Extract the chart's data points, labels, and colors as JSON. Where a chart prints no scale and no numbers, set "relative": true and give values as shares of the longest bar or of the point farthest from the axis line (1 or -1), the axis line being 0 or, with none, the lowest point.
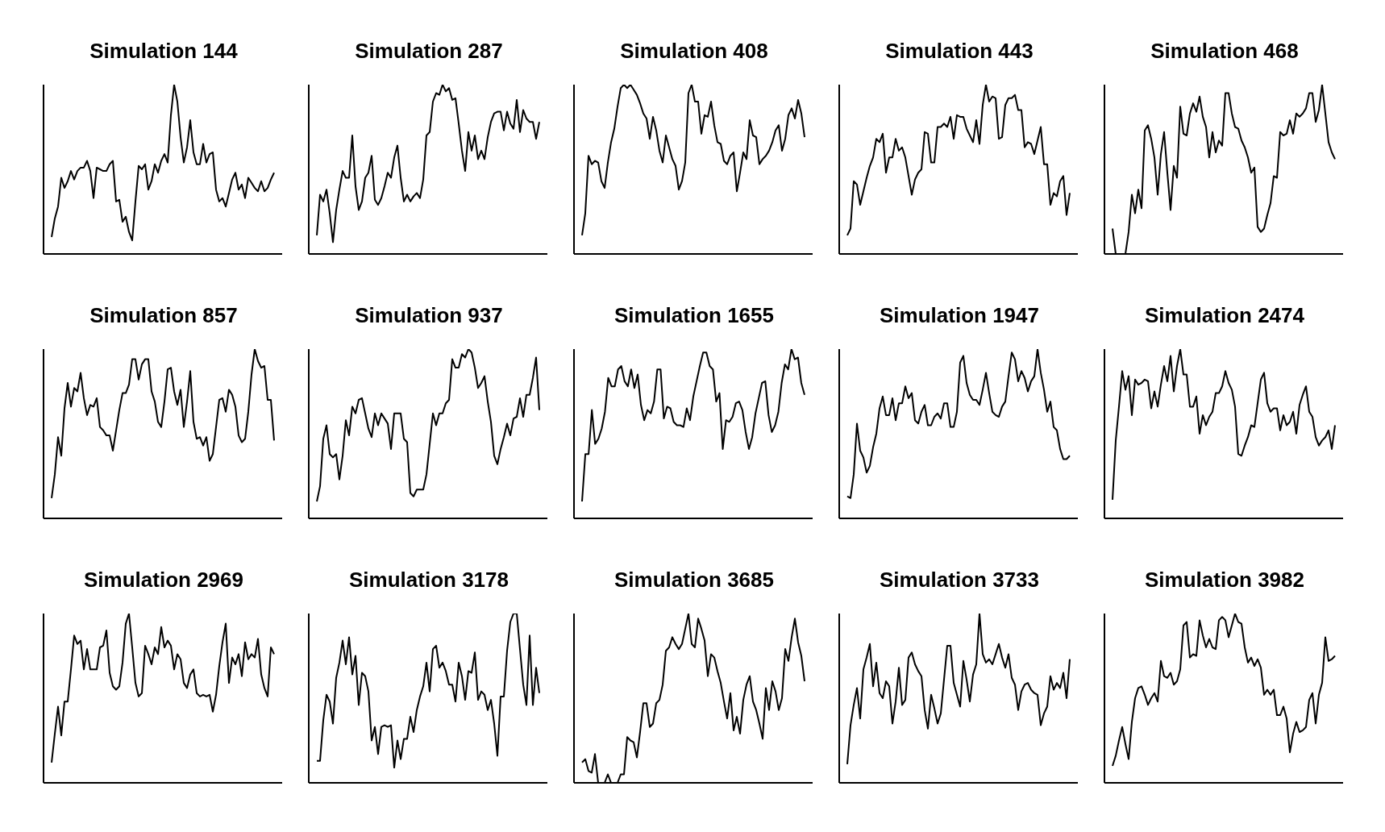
{
  "chart_data": [
    {
      "type": "line",
      "title": "Simulation 144",
      "relative": true,
      "tick_labels": false,
      "color": "#000000",
      "categories": [
        null,
        null,
        null,
        null,
        null,
        null,
        null,
        null,
        null,
        null,
        null,
        null,
        null,
        null,
        null,
        null,
        null,
        null,
        null,
        null,
        null,
        null,
        null,
        null,
        null,
        null,
        null,
        null,
        null,
        null,
        null,
        null,
        null,
        null,
        null,
        null,
        null,
        null,
        null,
        null,
        null,
        null,
        null,
        null,
        null,
        null,
        null,
        null,
        null,
        null,
        null,
        null,
        null,
        null,
        null,
        null,
        null,
        null,
        null,
        null,
        null,
        null,
        null,
        null,
        null,
        null,
        null,
        null,
        null,
        null
      ],
      "values": [
        0.1,
        0.21,
        0.28,
        0.45,
        0.39,
        0.43,
        0.49,
        0.44,
        0.49,
        0.51,
        0.51,
        0.55,
        0.49,
        0.33,
        0.51,
        0.5,
        0.49,
        0.49,
        0.53,
        0.55,
        0.31,
        0.32,
        0.19,
        0.22,
        0.13,
        0.08,
        0.31,
        0.52,
        0.5,
        0.53,
        0.38,
        0.43,
        0.53,
        0.48,
        0.55,
        0.59,
        0.54,
        0.82,
        1.0,
        0.9,
        0.69,
        0.54,
        0.63,
        0.79,
        0.6,
        0.53,
        0.53,
        0.65,
        0.54,
        0.59,
        0.6,
        0.38,
        0.31,
        0.33,
        0.28,
        0.36,
        0.44,
        0.48,
        0.38,
        0.41,
        0.33,
        0.45,
        0.42,
        0.39,
        0.37,
        0.43,
        0.37,
        0.39,
        0.44,
        0.48
      ]
    },
    {
      "type": "line",
      "title": "Simulation 287",
      "relative": true,
      "tick_labels": false,
      "color": "#000000",
      "categories": [
        null,
        null,
        null,
        null,
        null,
        null,
        null,
        null,
        null,
        null,
        null,
        null,
        null,
        null,
        null,
        null,
        null,
        null,
        null,
        null,
        null,
        null,
        null,
        null,
        null,
        null,
        null,
        null,
        null,
        null,
        null,
        null,
        null,
        null,
        null,
        null,
        null,
        null,
        null,
        null,
        null,
        null,
        null,
        null,
        null,
        null,
        null,
        null,
        null,
        null,
        null,
        null,
        null,
        null,
        null,
        null,
        null,
        null,
        null,
        null,
        null,
        null,
        null,
        null,
        null,
        null,
        null,
        null,
        null,
        null
      ],
      "values": [
        0.11,
        0.35,
        0.31,
        0.38,
        0.24,
        0.07,
        0.26,
        0.38,
        0.49,
        0.45,
        0.45,
        0.7,
        0.4,
        0.26,
        0.31,
        0.45,
        0.48,
        0.58,
        0.32,
        0.29,
        0.33,
        0.4,
        0.48,
        0.45,
        0.57,
        0.64,
        0.45,
        0.31,
        0.35,
        0.31,
        0.34,
        0.36,
        0.33,
        0.44,
        0.7,
        0.72,
        0.9,
        0.95,
        0.94,
        1.0,
        0.96,
        0.98,
        0.91,
        0.92,
        0.77,
        0.61,
        0.49,
        0.72,
        0.61,
        0.7,
        0.56,
        0.61,
        0.56,
        0.69,
        0.78,
        0.83,
        0.84,
        0.84,
        0.73,
        0.84,
        0.77,
        0.74,
        0.91,
        0.72,
        0.85,
        0.8,
        0.78,
        0.78,
        0.68,
        0.78
      ]
    },
    {
      "type": "line",
      "title": "Simulation 408",
      "relative": true,
      "tick_labels": false,
      "color": "#000000",
      "categories": [
        null,
        null,
        null,
        null,
        null,
        null,
        null,
        null,
        null,
        null,
        null,
        null,
        null,
        null,
        null,
        null,
        null,
        null,
        null,
        null,
        null,
        null,
        null,
        null,
        null,
        null,
        null,
        null,
        null,
        null,
        null,
        null,
        null,
        null,
        null,
        null,
        null,
        null,
        null,
        null,
        null,
        null,
        null,
        null,
        null,
        null,
        null,
        null,
        null,
        null,
        null,
        null,
        null,
        null,
        null,
        null,
        null,
        null,
        null,
        null,
        null,
        null,
        null,
        null,
        null,
        null,
        null,
        null,
        null,
        null
      ],
      "values": [
        0.11,
        0.24,
        0.58,
        0.53,
        0.55,
        0.54,
        0.43,
        0.39,
        0.54,
        0.66,
        0.74,
        0.87,
        0.98,
        1.0,
        0.98,
        1.0,
        0.97,
        0.94,
        0.89,
        0.83,
        0.8,
        0.68,
        0.81,
        0.73,
        0.61,
        0.54,
        0.7,
        0.63,
        0.56,
        0.52,
        0.38,
        0.43,
        0.54,
        0.95,
        1.0,
        0.9,
        0.9,
        0.71,
        0.82,
        0.81,
        0.9,
        0.76,
        0.66,
        0.65,
        0.55,
        0.53,
        0.58,
        0.6,
        0.37,
        0.48,
        0.6,
        0.56,
        0.79,
        0.7,
        0.69,
        0.53,
        0.56,
        0.58,
        0.61,
        0.66,
        0.73,
        0.76,
        0.61,
        0.68,
        0.82,
        0.86,
        0.8,
        0.91,
        0.83,
        0.69
      ]
    },
    {
      "type": "line",
      "title": "Simulation 443",
      "relative": true,
      "tick_labels": false,
      "color": "#000000",
      "categories": [
        null,
        null,
        null,
        null,
        null,
        null,
        null,
        null,
        null,
        null,
        null,
        null,
        null,
        null,
        null,
        null,
        null,
        null,
        null,
        null,
        null,
        null,
        null,
        null,
        null,
        null,
        null,
        null,
        null,
        null,
        null,
        null,
        null,
        null,
        null,
        null,
        null,
        null,
        null,
        null,
        null,
        null,
        null,
        null,
        null,
        null,
        null,
        null,
        null,
        null,
        null,
        null,
        null,
        null,
        null,
        null,
        null,
        null,
        null,
        null,
        null,
        null,
        null,
        null,
        null,
        null,
        null,
        null,
        null,
        null
      ],
      "values": [
        0.11,
        0.15,
        0.43,
        0.41,
        0.29,
        0.37,
        0.45,
        0.52,
        0.57,
        0.68,
        0.66,
        0.71,
        0.48,
        0.57,
        0.57,
        0.68,
        0.61,
        0.63,
        0.57,
        0.46,
        0.35,
        0.44,
        0.48,
        0.5,
        0.72,
        0.71,
        0.54,
        0.54,
        0.75,
        0.75,
        0.77,
        0.75,
        0.81,
        0.68,
        0.82,
        0.81,
        0.81,
        0.74,
        0.7,
        0.66,
        0.79,
        0.65,
        0.88,
        1.0,
        0.9,
        0.93,
        0.92,
        0.68,
        0.69,
        0.88,
        0.92,
        0.92,
        0.94,
        0.85,
        0.85,
        0.63,
        0.66,
        0.65,
        0.59,
        0.67,
        0.75,
        0.53,
        0.53,
        0.29,
        0.36,
        0.34,
        0.43,
        0.46,
        0.23,
        0.36
      ]
    },
    {
      "type": "line",
      "title": "Simulation 468",
      "relative": true,
      "tick_labels": false,
      "color": "#000000",
      "categories": [
        null,
        null,
        null,
        null,
        null,
        null,
        null,
        null,
        null,
        null,
        null,
        null,
        null,
        null,
        null,
        null,
        null,
        null,
        null,
        null,
        null,
        null,
        null,
        null,
        null,
        null,
        null,
        null,
        null,
        null,
        null,
        null,
        null,
        null,
        null,
        null,
        null,
        null,
        null,
        null,
        null,
        null,
        null,
        null,
        null,
        null,
        null,
        null,
        null,
        null,
        null,
        null,
        null,
        null,
        null,
        null,
        null,
        null,
        null,
        null,
        null,
        null,
        null,
        null,
        null,
        null,
        null,
        null,
        null,
        null
      ],
      "values": [
        0.15,
        0,
        null,
        null,
        0,
        0.13,
        0.35,
        0.24,
        0.38,
        0.27,
        0.73,
        0.76,
        0.68,
        0.57,
        0.35,
        0.59,
        0.72,
        0.48,
        0.26,
        0.52,
        0.45,
        0.87,
        0.71,
        0.7,
        0.83,
        0.89,
        0.84,
        0.93,
        0.81,
        0.75,
        0.57,
        0.72,
        0.6,
        0.67,
        0.64,
        0.95,
        0.95,
        0.83,
        0.75,
        0.74,
        0.67,
        0.63,
        0.57,
        0.48,
        0.51,
        0.16,
        0.13,
        0.15,
        0.23,
        0.3,
        0.46,
        0.45,
        0.72,
        0.7,
        0.71,
        0.79,
        0.71,
        0.83,
        0.81,
        0.83,
        0.86,
        0.95,
        0.95,
        0.78,
        0.85,
        1.0,
        0.83,
        0.66,
        0.6,
        0.56
      ]
    },
    {
      "type": "line",
      "title": "Simulation 857",
      "relative": true,
      "tick_labels": false,
      "color": "#000000",
      "categories": [
        null,
        null,
        null,
        null,
        null,
        null,
        null,
        null,
        null,
        null,
        null,
        null,
        null,
        null,
        null,
        null,
        null,
        null,
        null,
        null,
        null,
        null,
        null,
        null,
        null,
        null,
        null,
        null,
        null,
        null,
        null,
        null,
        null,
        null,
        null,
        null,
        null,
        null,
        null,
        null,
        null,
        null,
        null,
        null,
        null,
        null,
        null,
        null,
        null,
        null,
        null,
        null,
        null,
        null,
        null,
        null,
        null,
        null,
        null,
        null,
        null,
        null,
        null,
        null,
        null,
        null,
        null,
        null,
        null,
        null
      ],
      "values": [
        0.12,
        0.26,
        0.48,
        0.37,
        0.65,
        0.8,
        0.66,
        0.77,
        0.75,
        0.86,
        0.71,
        0.61,
        0.67,
        0.66,
        0.71,
        0.54,
        0.52,
        0.49,
        0.49,
        0.4,
        0.52,
        0.64,
        0.74,
        0.74,
        0.79,
        0.94,
        0.94,
        0.82,
        0.91,
        0.94,
        0.94,
        0.75,
        0.69,
        0.57,
        0.54,
        0.69,
        0.88,
        0.89,
        0.75,
        0.67,
        0.76,
        0.54,
        0.69,
        0.87,
        0.57,
        0.47,
        0.48,
        0.43,
        0.48,
        0.34,
        0.38,
        0.54,
        0.7,
        0.71,
        0.63,
        0.76,
        0.73,
        0.66,
        0.49,
        0.45,
        0.47,
        0.63,
        0.85,
        1.0,
        0.93,
        0.89,
        0.9,
        0.7,
        0.7,
        0.46
      ]
    },
    {
      "type": "line",
      "title": "Simulation 937",
      "relative": true,
      "tick_labels": false,
      "color": "#000000",
      "categories": [
        null,
        null,
        null,
        null,
        null,
        null,
        null,
        null,
        null,
        null,
        null,
        null,
        null,
        null,
        null,
        null,
        null,
        null,
        null,
        null,
        null,
        null,
        null,
        null,
        null,
        null,
        null,
        null,
        null,
        null,
        null,
        null,
        null,
        null,
        null,
        null,
        null,
        null,
        null,
        null,
        null,
        null,
        null,
        null,
        null,
        null,
        null,
        null,
        null,
        null,
        null,
        null,
        null,
        null,
        null,
        null,
        null,
        null,
        null,
        null,
        null,
        null,
        null,
        null,
        null,
        null,
        null,
        null,
        null,
        null
      ],
      "values": [
        0.1,
        0.19,
        0.47,
        0.55,
        0.38,
        0.36,
        0.38,
        0.23,
        0.37,
        0.58,
        0.49,
        0.66,
        0.62,
        0.7,
        0.71,
        0.62,
        0.53,
        0.48,
        0.62,
        0.55,
        0.62,
        0.59,
        0.56,
        0.41,
        0.62,
        0.62,
        0.62,
        0.47,
        0.45,
        0.15,
        0.13,
        0.17,
        0.17,
        0.17,
        0.26,
        0.44,
        0.62,
        0.55,
        0.62,
        0.62,
        0.68,
        0.7,
        0.94,
        0.89,
        0.89,
        0.97,
        0.95,
        1.0,
        0.98,
        0.89,
        0.77,
        0.8,
        0.84,
        0.69,
        0.57,
        0.37,
        0.32,
        0.41,
        0.48,
        0.56,
        0.49,
        0.59,
        0.6,
        0.71,
        0.6,
        0.73,
        0.73,
        0.83,
        0.95,
        0.64
      ]
    },
    {
      "type": "line",
      "title": "Simulation 1655",
      "relative": true,
      "tick_labels": false,
      "color": "#000000",
      "categories": [
        null,
        null,
        null,
        null,
        null,
        null,
        null,
        null,
        null,
        null,
        null,
        null,
        null,
        null,
        null,
        null,
        null,
        null,
        null,
        null,
        null,
        null,
        null,
        null,
        null,
        null,
        null,
        null,
        null,
        null,
        null,
        null,
        null,
        null,
        null,
        null,
        null,
        null,
        null,
        null,
        null,
        null,
        null,
        null,
        null,
        null,
        null,
        null,
        null,
        null,
        null,
        null,
        null,
        null,
        null,
        null,
        null,
        null,
        null,
        null,
        null,
        null,
        null,
        null,
        null,
        null,
        null,
        null,
        null
      ],
      "values": [
        0.1,
        0.38,
        0.38,
        0.64,
        0.44,
        0.47,
        0.53,
        0.63,
        0.83,
        0.78,
        0.78,
        0.88,
        0.9,
        0.81,
        0.78,
        0.88,
        0.77,
        0.85,
        0.67,
        0.58,
        0.64,
        0.62,
        0.69,
        0.88,
        0.88,
        0.59,
        0.66,
        0.65,
        0.57,
        0.55,
        0.55,
        0.54,
        0.65,
        0.58,
        0.72,
        0.81,
        0.9,
        0.98,
        0.98,
        0.9,
        0.88,
        0.69,
        0.74,
        0.41,
        0.58,
        0.57,
        0.6,
        0.68,
        0.69,
        0.64,
        0.51,
        0.41,
        0.48,
        0.62,
        0.71,
        0.8,
        0.81,
        0.61,
        0.51,
        0.55,
        0.63,
        0.8,
        0.91,
        0.88,
        1.0,
        0.94,
        0.95,
        0.8,
        0.73
      ]
    },
    {
      "type": "line",
      "title": "Simulation 1947",
      "relative": true,
      "tick_labels": false,
      "color": "#000000",
      "categories": [
        null,
        null,
        null,
        null,
        null,
        null,
        null,
        null,
        null,
        null,
        null,
        null,
        null,
        null,
        null,
        null,
        null,
        null,
        null,
        null,
        null,
        null,
        null,
        null,
        null,
        null,
        null,
        null,
        null,
        null,
        null,
        null,
        null,
        null,
        null,
        null,
        null,
        null,
        null,
        null,
        null,
        null,
        null,
        null,
        null,
        null,
        null,
        null,
        null,
        null,
        null,
        null,
        null,
        null,
        null,
        null,
        null,
        null,
        null,
        null,
        null,
        null,
        null,
        null,
        null,
        null,
        null,
        null,
        null,
        null
      ],
      "values": [
        0.13,
        0.12,
        0.26,
        0.56,
        0.4,
        0.36,
        0.27,
        0.31,
        0.42,
        0.5,
        0.65,
        0.72,
        0.61,
        0.61,
        0.71,
        0.58,
        0.68,
        0.68,
        0.78,
        0.71,
        0.74,
        0.58,
        0.56,
        0.63,
        0.67,
        0.55,
        0.55,
        0.6,
        0.62,
        0.59,
        0.68,
        0.68,
        0.54,
        0.54,
        0.63,
        0.92,
        0.96,
        0.8,
        0.73,
        0.7,
        0.7,
        0.67,
        0.76,
        0.86,
        0.74,
        0.63,
        0.61,
        0.6,
        0.66,
        0.69,
        0.84,
        0.98,
        0.94,
        0.81,
        0.87,
        0.83,
        0.75,
        0.81,
        0.84,
        1.0,
        0.86,
        0.76,
        0.63,
        0.69,
        0.54,
        0.52,
        0.41,
        0.35,
        0.35,
        0.37
      ]
    },
    {
      "type": "line",
      "title": "Simulation 2474",
      "relative": true,
      "tick_labels": false,
      "color": "#000000",
      "categories": [
        null,
        null,
        null,
        null,
        null,
        null,
        null,
        null,
        null,
        null,
        null,
        null,
        null,
        null,
        null,
        null,
        null,
        null,
        null,
        null,
        null,
        null,
        null,
        null,
        null,
        null,
        null,
        null,
        null,
        null,
        null,
        null,
        null,
        null,
        null,
        null,
        null,
        null,
        null,
        null,
        null,
        null,
        null,
        null,
        null,
        null,
        null,
        null,
        null,
        null,
        null,
        null,
        null,
        null,
        null,
        null,
        null,
        null,
        null,
        null,
        null,
        null,
        null,
        null,
        null,
        null,
        null,
        null,
        null,
        null
      ],
      "values": [
        0.11,
        0.46,
        0.66,
        0.87,
        0.76,
        0.84,
        0.61,
        0.82,
        0.79,
        0.8,
        0.82,
        0.81,
        0.65,
        0.75,
        0.66,
        0.79,
        0.9,
        0.81,
        0.96,
        0.75,
        0.9,
        1.0,
        0.85,
        0.85,
        0.66,
        0.66,
        0.72,
        0.5,
        0.61,
        0.55,
        0.6,
        0.63,
        0.74,
        0.74,
        0.78,
        0.87,
        0.8,
        0.76,
        0.66,
        0.38,
        0.37,
        0.43,
        0.48,
        0.55,
        0.54,
        0.68,
        0.82,
        0.86,
        0.68,
        0.63,
        0.65,
        0.65,
        0.52,
        0.61,
        0.55,
        0.57,
        0.63,
        0.5,
        0.67,
        0.73,
        0.78,
        0.63,
        0.6,
        0.48,
        0.43,
        0.46,
        0.48,
        0.52,
        0.41,
        0.55
      ]
    },
    {
      "type": "line",
      "title": "Simulation 2969",
      "relative": true,
      "tick_labels": false,
      "color": "#000000",
      "categories": [
        null,
        null,
        null,
        null,
        null,
        null,
        null,
        null,
        null,
        null,
        null,
        null,
        null,
        null,
        null,
        null,
        null,
        null,
        null,
        null,
        null,
        null,
        null,
        null,
        null,
        null,
        null,
        null,
        null,
        null,
        null,
        null,
        null,
        null,
        null,
        null,
        null,
        null,
        null,
        null,
        null,
        null,
        null,
        null,
        null,
        null,
        null,
        null,
        null,
        null,
        null,
        null,
        null,
        null,
        null,
        null,
        null,
        null,
        null,
        null,
        null,
        null,
        null,
        null,
        null,
        null,
        null,
        null,
        null,
        null
      ],
      "values": [
        0.12,
        0.29,
        0.45,
        0.28,
        0.48,
        0.48,
        0.67,
        0.87,
        0.82,
        0.84,
        0.67,
        0.79,
        0.67,
        0.67,
        0.67,
        0.8,
        0.81,
        0.9,
        0.65,
        0.57,
        0.55,
        0.57,
        0.71,
        0.94,
        1.0,
        0.8,
        0.59,
        0.51,
        0.53,
        0.81,
        0.76,
        0.7,
        0.8,
        0.76,
        0.92,
        0.8,
        0.84,
        0.81,
        0.67,
        0.76,
        0.73,
        0.59,
        0.56,
        0.64,
        0.67,
        0.53,
        0.51,
        0.52,
        0.51,
        0.52,
        0.42,
        0.52,
        0.69,
        0.83,
        0.94,
        0.59,
        0.74,
        0.7,
        0.76,
        0.63,
        0.83,
        0.73,
        0.76,
        0.74,
        0.85,
        0.64,
        0.56,
        0.51,
        0.8,
        0.76
      ]
    },
    {
      "type": "line",
      "title": "Simulation 3178",
      "relative": true,
      "tick_labels": false,
      "color": "#000000",
      "categories": [
        null,
        null,
        null,
        null,
        null,
        null,
        null,
        null,
        null,
        null,
        null,
        null,
        null,
        null,
        null,
        null,
        null,
        null,
        null,
        null,
        null,
        null,
        null,
        null,
        null,
        null,
        null,
        null,
        null,
        null,
        null,
        null,
        null,
        null,
        null,
        null,
        null,
        null,
        null,
        null,
        null,
        null,
        null,
        null,
        null,
        null,
        null,
        null,
        null,
        null,
        null,
        null,
        null,
        null,
        null,
        null,
        null,
        null,
        null,
        null,
        null,
        null,
        null,
        null,
        null,
        null,
        null,
        null,
        null,
        null
      ],
      "values": [
        0.13,
        0.13,
        0.37,
        0.52,
        0.48,
        0.35,
        0.62,
        0.71,
        0.84,
        0.7,
        0.86,
        0.64,
        0.75,
        0.46,
        0.65,
        0.63,
        0.54,
        0.25,
        0.33,
        0.17,
        0.33,
        0.34,
        0.33,
        0.34,
        0.09,
        0.25,
        0.14,
        0.26,
        0.26,
        0.39,
        0.3,
        0.43,
        0.51,
        0.57,
        0.71,
        0.54,
        0.79,
        0.81,
        0.68,
        0.71,
        0.66,
        0.58,
        0.58,
        0.48,
        0.71,
        0.63,
        0.49,
        0.66,
        0.65,
        0.77,
        0.49,
        0.54,
        0.52,
        0.43,
        0.49,
        0.35,
        0.16,
        0.51,
        0.51,
        0.78,
        0.95,
        1.0,
        1.0,
        0.79,
        0.58,
        0.46,
        0.87,
        0.46,
        0.68,
        0.53
      ]
    },
    {
      "type": "line",
      "title": "Simulation 3685",
      "relative": true,
      "tick_labels": false,
      "color": "#000000",
      "categories": [
        null,
        null,
        null,
        null,
        null,
        null,
        null,
        null,
        null,
        null,
        null,
        null,
        null,
        null,
        null,
        null,
        null,
        null,
        null,
        null,
        null,
        null,
        null,
        null,
        null,
        null,
        null,
        null,
        null,
        null,
        null,
        null,
        null,
        null,
        null,
        null,
        null,
        null,
        null,
        null,
        null,
        null,
        null,
        null,
        null,
        null,
        null,
        null,
        null,
        null,
        null,
        null,
        null,
        null,
        null,
        null,
        null,
        null,
        null,
        null,
        null,
        null,
        null,
        null,
        null,
        null,
        null,
        null,
        null,
        null
      ],
      "values": [
        0.12,
        0.14,
        0.07,
        0.06,
        0.17,
        0,
        null,
        0,
        0.05,
        0,
        null,
        0,
        0.05,
        0.05,
        0.27,
        0.25,
        0.24,
        0.15,
        0.3,
        0.47,
        0.47,
        0.33,
        0.35,
        0.47,
        0.49,
        0.58,
        0.78,
        0.8,
        0.86,
        0.82,
        0.79,
        0.82,
        0.91,
        1.0,
        0.82,
        0.8,
        0.97,
        0.91,
        0.84,
        0.63,
        0.76,
        0.74,
        0.66,
        0.59,
        0.48,
        0.38,
        0.53,
        0.31,
        0.39,
        0.29,
        0.49,
        0.58,
        0.63,
        0.48,
        0.43,
        0.35,
        0.26,
        0.56,
        0.43,
        0.6,
        0.54,
        0.43,
        0.5,
        0.79,
        0.72,
        0.86,
        0.97,
        0.83,
        0.75,
        0.6
      ]
    },
    {
      "type": "line",
      "title": "Simulation 3733",
      "relative": true,
      "tick_labels": false,
      "color": "#000000",
      "categories": [
        null,
        null,
        null,
        null,
        null,
        null,
        null,
        null,
        null,
        null,
        null,
        null,
        null,
        null,
        null,
        null,
        null,
        null,
        null,
        null,
        null,
        null,
        null,
        null,
        null,
        null,
        null,
        null,
        null,
        null,
        null,
        null,
        null,
        null,
        null,
        null,
        null,
        null,
        null,
        null,
        null,
        null,
        null,
        null,
        null,
        null,
        null,
        null,
        null,
        null,
        null,
        null,
        null,
        null,
        null,
        null,
        null,
        null,
        null,
        null,
        null,
        null,
        null,
        null,
        null,
        null,
        null,
        null,
        null,
        null
      ],
      "values": [
        0.11,
        0.34,
        0.46,
        0.56,
        0.38,
        0.67,
        0.74,
        0.82,
        0.57,
        0.71,
        0.53,
        0.5,
        0.6,
        0.57,
        0.35,
        0.48,
        0.68,
        0.46,
        0.49,
        0.74,
        0.77,
        0.7,
        0.66,
        0.63,
        0.43,
        0.32,
        0.52,
        0.44,
        0.35,
        0.41,
        0.61,
        0.81,
        0.81,
        0.59,
        0.52,
        0.45,
        0.72,
        0.61,
        0.48,
        0.64,
        0.7,
        1.0,
        0.76,
        0.71,
        0.73,
        0.7,
        0.76,
        0.82,
        0.74,
        0.68,
        0.76,
        0.62,
        0.58,
        0.43,
        0.54,
        0.58,
        0.59,
        0.55,
        0.53,
        0.52,
        0.34,
        0.41,
        0.45,
        0.63,
        0.55,
        0.59,
        0.56,
        0.65,
        0.5,
        0.73
      ]
    },
    {
      "type": "line",
      "title": "Simulation 3982",
      "relative": true,
      "tick_labels": false,
      "color": "#000000",
      "categories": [
        null,
        null,
        null,
        null,
        null,
        null,
        null,
        null,
        null,
        null,
        null,
        null,
        null,
        null,
        null,
        null,
        null,
        null,
        null,
        null,
        null,
        null,
        null,
        null,
        null,
        null,
        null,
        null,
        null,
        null,
        null,
        null,
        null,
        null,
        null,
        null,
        null,
        null,
        null,
        null,
        null,
        null,
        null,
        null,
        null,
        null,
        null,
        null,
        null,
        null,
        null,
        null,
        null,
        null,
        null,
        null,
        null,
        null,
        null,
        null,
        null,
        null,
        null,
        null,
        null,
        null,
        null,
        null,
        null,
        null
      ],
      "values": [
        0.1,
        0.16,
        0.25,
        0.33,
        0.23,
        0.14,
        0.36,
        0.5,
        0.56,
        0.57,
        0.52,
        0.46,
        0.5,
        0.53,
        0.48,
        0.72,
        0.63,
        0.62,
        0.65,
        0.58,
        0.6,
        0.67,
        0.93,
        0.95,
        0.74,
        0.76,
        0.75,
        0.96,
        0.87,
        0.8,
        0.85,
        0.8,
        0.79,
        0.96,
        0.98,
        0.96,
        0.86,
        0.93,
        1.0,
        0.95,
        0.94,
        0.8,
        0.71,
        0.74,
        0.69,
        0.73,
        0.68,
        0.52,
        0.55,
        0.52,
        0.55,
        0.4,
        0.4,
        0.45,
        0.38,
        0.18,
        0.29,
        0.36,
        0.3,
        0.31,
        0.33,
        0.49,
        0.53,
        0.35,
        0.52,
        0.59,
        0.86,
        0.72,
        0.73,
        0.75
      ]
    }
  ]
}
